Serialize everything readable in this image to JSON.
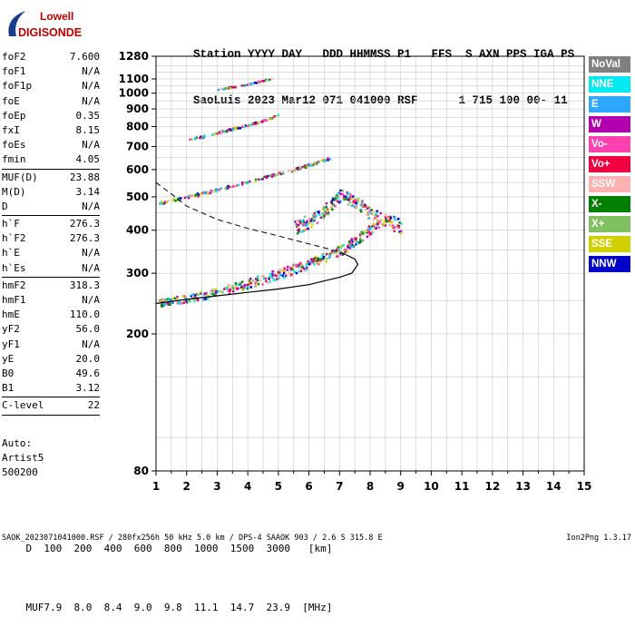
{
  "logo": {
    "line1": "Lowell",
    "line2": "DIGISONDE",
    "colors": {
      "text": "#c00000",
      "swoosh": "#1a3e8f"
    }
  },
  "header": {
    "line1": "Station YYYY DAY   DDD HHMMSS P1   FFS  S AXN PPS IGA PS",
    "line2": "SaoLuis 2023 Mar12 071 041000 RSF      1 715 100 00- 11"
  },
  "parameters": [
    {
      "name": "foF2",
      "value": "7.600"
    },
    {
      "name": "foF1",
      "value": "N/A"
    },
    {
      "name": "foF1p",
      "value": "N/A"
    },
    {
      "name": "foE",
      "value": "N/A"
    },
    {
      "name": "foEp",
      "value": "0.35"
    },
    {
      "name": "fxI",
      "value": "8.15"
    },
    {
      "name": "foEs",
      "value": "N/A"
    },
    {
      "name": "fmin",
      "value": "4.05",
      "sep": true
    },
    {
      "name": "MUF(D)",
      "value": "23.88"
    },
    {
      "name": "M(D)",
      "value": "3.14"
    },
    {
      "name": "D",
      "value": "N/A",
      "sep": true
    },
    {
      "name": "h`F",
      "value": "276.3"
    },
    {
      "name": "h`F2",
      "value": "276.3"
    },
    {
      "name": "h`E",
      "value": "N/A"
    },
    {
      "name": "h`Es",
      "value": "N/A",
      "sep": true
    },
    {
      "name": "hmF2",
      "value": "318.3"
    },
    {
      "name": "hmF1",
      "value": "N/A"
    },
    {
      "name": "hmE",
      "value": "110.0"
    },
    {
      "name": "yF2",
      "value": "56.0"
    },
    {
      "name": "yF1",
      "value": "N/A"
    },
    {
      "name": "yE",
      "value": "20.0"
    },
    {
      "name": "B0",
      "value": "49.6"
    },
    {
      "name": "B1",
      "value": "3.12",
      "sep": true
    },
    {
      "name": "C-level",
      "value": "22",
      "sep": true
    }
  ],
  "autoscale": {
    "line1": "Auto:",
    "line2": "Artist5",
    "line3": "500200"
  },
  "legend": [
    {
      "label": "NoVal",
      "color": "#808080"
    },
    {
      "label": "NNE",
      "color": "#00e8f0"
    },
    {
      "label": "E",
      "color": "#2ea8ff"
    },
    {
      "label": "W",
      "color": "#b000b0"
    },
    {
      "label": "Vo-",
      "color": "#ff40b0"
    },
    {
      "label": "Vo+",
      "color": "#f00040"
    },
    {
      "label": "SSW",
      "color": "#ffb0b0"
    },
    {
      "label": "X-",
      "color": "#008000"
    },
    {
      "label": "X+",
      "color": "#80c060"
    },
    {
      "label": "SSE",
      "color": "#d0d000"
    },
    {
      "label": "NNW",
      "color": "#0000c8"
    }
  ],
  "chart_data": {
    "type": "scatter",
    "title": "",
    "xlabel": "",
    "ylabel": "",
    "xlim": [
      1,
      15
    ],
    "ylim": [
      80,
      1280
    ],
    "yscale": "log",
    "x_ticks": [
      1,
      2,
      3,
      4,
      5,
      6,
      7,
      8,
      9,
      10,
      11,
      12,
      13,
      14,
      15
    ],
    "y_ticks": [
      80,
      200,
      300,
      400,
      500,
      600,
      700,
      800,
      900,
      1000,
      1100,
      1280
    ],
    "grid": true,
    "legend_position": "right",
    "traces": [
      {
        "name": "O-trace F2",
        "points": [
          [
            1.1,
            245
          ],
          [
            1.5,
            248
          ],
          [
            2.0,
            252
          ],
          [
            2.5,
            257
          ],
          [
            3.0,
            263
          ],
          [
            3.5,
            270
          ],
          [
            4.0,
            278
          ],
          [
            4.5,
            287
          ],
          [
            5.0,
            296
          ],
          [
            5.5,
            306
          ],
          [
            6.0,
            317
          ],
          [
            6.5,
            330
          ],
          [
            7.0,
            345
          ],
          [
            7.5,
            370
          ],
          [
            8.0,
            400
          ],
          [
            8.3,
            420
          ]
        ]
      },
      {
        "name": "2nd hop",
        "points": [
          [
            1.1,
            480
          ],
          [
            2.0,
            500
          ],
          [
            3.0,
            525
          ],
          [
            4.0,
            555
          ],
          [
            5.0,
            585
          ],
          [
            6.0,
            620
          ],
          [
            6.7,
            650
          ]
        ]
      },
      {
        "name": "3rd hop",
        "points": [
          [
            2.0,
            730
          ],
          [
            3.0,
            770
          ],
          [
            4.0,
            810
          ],
          [
            5.0,
            865
          ]
        ]
      },
      {
        "name": "4th hop",
        "points": [
          [
            3.0,
            1030
          ],
          [
            4.0,
            1065
          ],
          [
            4.8,
            1110
          ]
        ]
      },
      {
        "name": "spread F",
        "points": [
          [
            5.5,
            400
          ],
          [
            6.0,
            420
          ],
          [
            6.5,
            450
          ],
          [
            7.0,
            500
          ],
          [
            7.5,
            480
          ],
          [
            8.0,
            440
          ],
          [
            8.5,
            420
          ],
          [
            9.0,
            405
          ]
        ]
      }
    ],
    "profile_solid": [
      [
        1.0,
        245
      ],
      [
        2.0,
        252
      ],
      [
        3.0,
        258
      ],
      [
        4.0,
        264
      ],
      [
        5.0,
        270
      ],
      [
        6.0,
        278
      ],
      [
        6.5,
        285
      ],
      [
        7.0,
        292
      ],
      [
        7.4,
        300
      ],
      [
        7.6,
        318
      ],
      [
        7.5,
        330
      ],
      [
        7.2,
        340
      ]
    ],
    "profile_dashed": [
      [
        1.0,
        550
      ],
      [
        1.5,
        510
      ],
      [
        2.0,
        470
      ],
      [
        3.0,
        430
      ],
      [
        4.0,
        405
      ],
      [
        5.0,
        385
      ],
      [
        6.0,
        365
      ],
      [
        6.8,
        350
      ],
      [
        7.2,
        340
      ]
    ]
  },
  "muf_table": {
    "d_label": "D",
    "muf_label": "MUF",
    "d_values": [
      "100",
      "200",
      "400",
      "600",
      "800",
      "1000",
      "1500",
      "3000",
      "[km]"
    ],
    "muf_values": [
      "7.9",
      "8.0",
      "8.4",
      "9.0",
      "9.8",
      "11.1",
      "14.7",
      "23.9",
      "[MHz]"
    ]
  },
  "footer": "SAOK_2023071041000.RSF / 280fx256h 50 kHz 5.0 km / DPS-4 SAAOK 903 / 2.6 S 315.8 E",
  "version": "Ion2Png 1.3.17"
}
